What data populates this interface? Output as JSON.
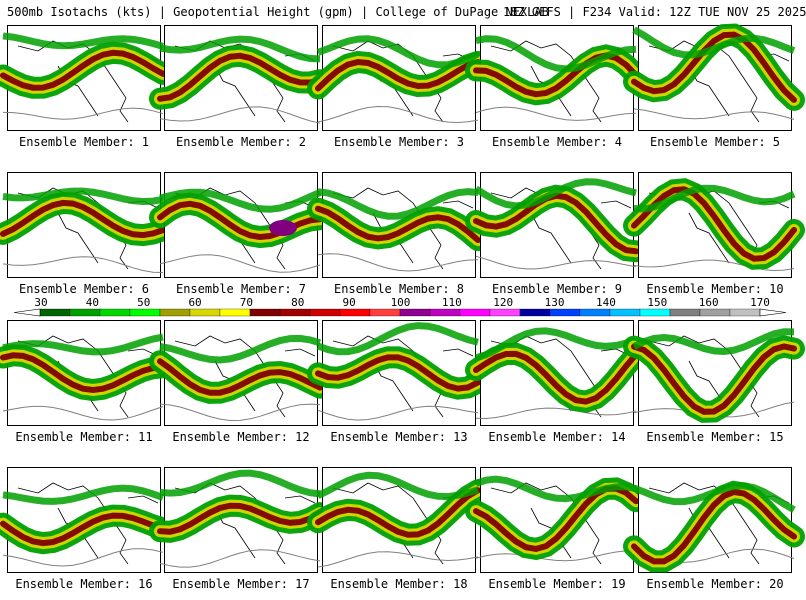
{
  "header": {
    "left": "500mb Isotachs (kts) | Geopotential Height (gpm) | College of DuPage NEXLAB",
    "right": "18Z GEFS | F234 Valid: 12Z TUE NOV 25 2025"
  },
  "members": [
    {
      "label": "Ensemble Member: 1"
    },
    {
      "label": "Ensemble Member: 2"
    },
    {
      "label": "Ensemble Member: 3"
    },
    {
      "label": "Ensemble Member: 4"
    },
    {
      "label": "Ensemble Member: 5"
    },
    {
      "label": "Ensemble Member: 6"
    },
    {
      "label": "Ensemble Member: 7"
    },
    {
      "label": "Ensemble Member: 8"
    },
    {
      "label": "Ensemble Member: 9"
    },
    {
      "label": "Ensemble Member: 10"
    },
    {
      "label": "Ensemble Member: 11"
    },
    {
      "label": "Ensemble Member: 12"
    },
    {
      "label": "Ensemble Member: 13"
    },
    {
      "label": "Ensemble Member: 14"
    },
    {
      "label": "Ensemble Member: 15"
    },
    {
      "label": "Ensemble Member: 16"
    },
    {
      "label": "Ensemble Member: 17"
    },
    {
      "label": "Ensemble Member: 18"
    },
    {
      "label": "Ensemble Member: 19"
    },
    {
      "label": "Ensemble Member: 20"
    }
  ],
  "color_scale": {
    "labels": [
      "30",
      "40",
      "50",
      "60",
      "70",
      "80",
      "90",
      "100",
      "110",
      "120",
      "130",
      "140",
      "150",
      "160",
      "170"
    ],
    "colors": [
      "#006400",
      "#00a000",
      "#00d800",
      "#00ff00",
      "#a0a000",
      "#d8d800",
      "#ffff00",
      "#800000",
      "#a00000",
      "#d00000",
      "#ff0000",
      "#ff4040",
      "#900090",
      "#c000c0",
      "#ff00ff",
      "#ff40ff",
      "#0000a0",
      "#0040ff",
      "#0080ff",
      "#00c0ff",
      "#00ffff",
      "#808080",
      "#a0a0a0",
      "#c0c0c0"
    ]
  },
  "legend_colors": {
    "jet_weak": "#00a000",
    "jet_mid": "#d8d800",
    "jet_strong": "#800000",
    "jet_core": "#800080",
    "height_contour": "#808080"
  }
}
